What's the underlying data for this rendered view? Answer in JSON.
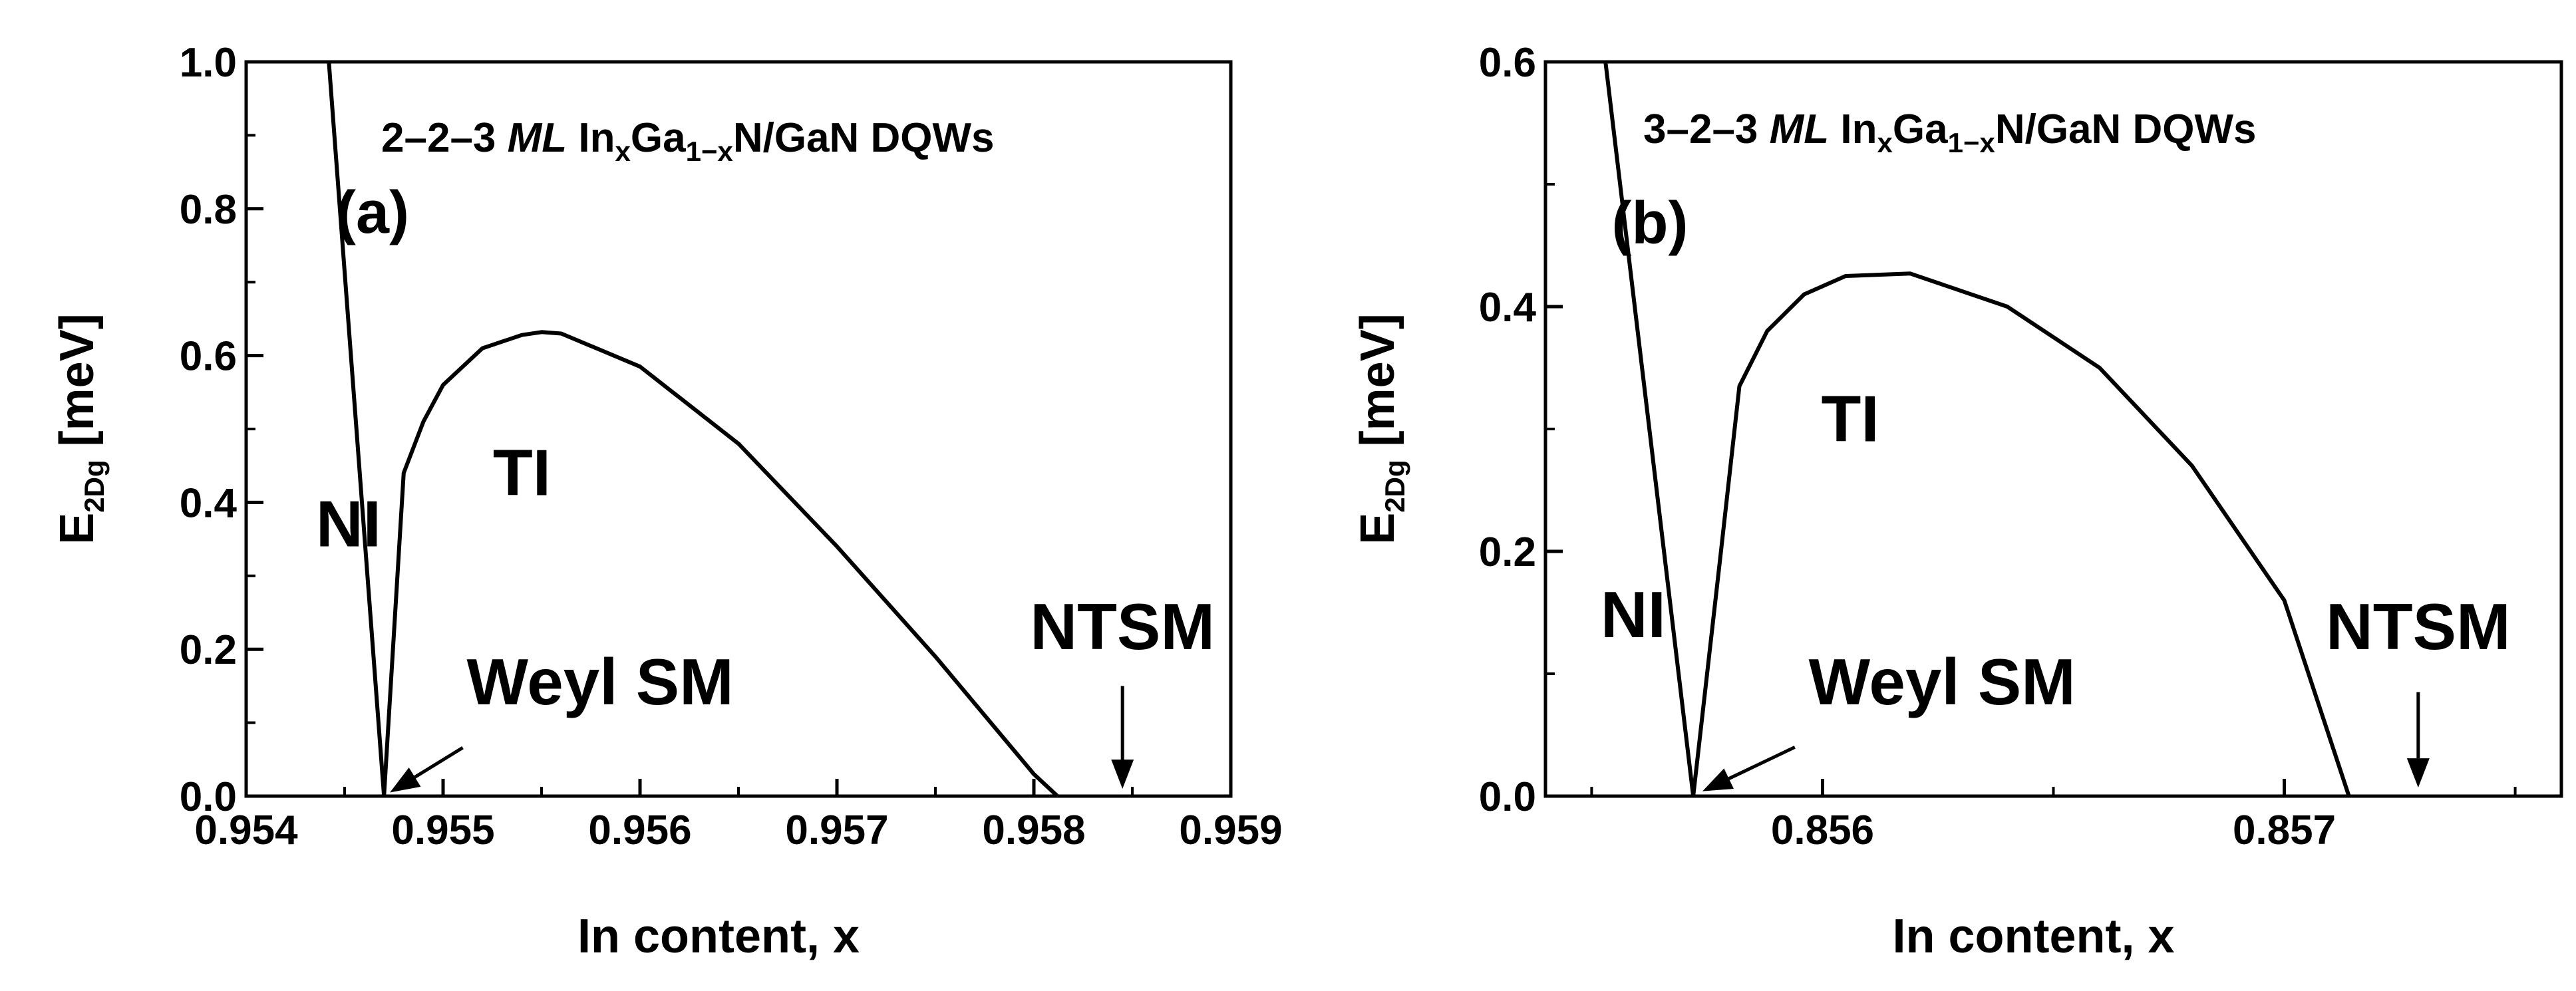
{
  "colors": {
    "background": "#ffffff",
    "ink": "#000000"
  },
  "chart_data": [
    {
      "type": "line",
      "panel_label": "(a)",
      "title": {
        "pre": "2–2–3 ",
        "ml": "ML",
        "mid1": " In",
        "sub1": "x",
        "mid2": "Ga",
        "sub2": "1−x",
        "post": "N/GaN DQWs"
      },
      "xlabel": "In content, x",
      "ylabel": {
        "main": "E",
        "sub": "2Dg",
        "unit": " [meV]"
      },
      "xlim": [
        0.954,
        0.959
      ],
      "ylim": [
        0.0,
        1.0
      ],
      "xticks": [
        0.954,
        0.955,
        0.956,
        0.957,
        0.958,
        0.959
      ],
      "xtick_labels": [
        "0.954",
        "0.955",
        "0.956",
        "0.957",
        "0.958",
        "0.959"
      ],
      "yticks": [
        0.0,
        0.2,
        0.4,
        0.6,
        0.8,
        1.0
      ],
      "ytick_labels": [
        "0.0",
        "0.2",
        "0.4",
        "0.6",
        "0.8",
        "1.0"
      ],
      "series": [
        {
          "name": "NI boundary",
          "x": [
            0.95442,
            0.9547
          ],
          "y": [
            1.0,
            0.0
          ]
        },
        {
          "name": "TI gap",
          "x": [
            0.9547,
            0.95475,
            0.9548,
            0.9549,
            0.955,
            0.9552,
            0.9554,
            0.9555,
            0.9556,
            0.956,
            0.9565,
            0.957,
            0.9575,
            0.958,
            0.95812
          ],
          "y": [
            0.0,
            0.22,
            0.44,
            0.51,
            0.56,
            0.61,
            0.628,
            0.632,
            0.63,
            0.585,
            0.48,
            0.34,
            0.19,
            0.03,
            0.0
          ]
        }
      ],
      "regions": [
        {
          "label": "NI",
          "x": 0.95452,
          "y": 0.34
        },
        {
          "label": "TI",
          "x": 0.9554,
          "y": 0.41
        }
      ],
      "annotations": [
        {
          "label": "Weyl SM",
          "text_x": 0.95512,
          "text_y": 0.125,
          "arrow_from": [
            0.9551,
            0.066
          ],
          "arrow_to": [
            0.95473,
            0.005
          ]
        },
        {
          "label": "NTSM",
          "text_x": 0.95845,
          "text_y": 0.2,
          "arrow_from": [
            0.95845,
            0.15
          ],
          "arrow_to": [
            0.95845,
            0.01
          ]
        }
      ]
    },
    {
      "type": "line",
      "panel_label": "(b)",
      "title": {
        "pre": "3–2–3 ",
        "ml": "ML",
        "mid1": " In",
        "sub1": "x",
        "mid2": "Ga",
        "sub2": "1−x",
        "post": "N/GaN DQWs"
      },
      "xlabel": "In content, x",
      "ylabel": {
        "main": "E",
        "sub": "2Dg",
        "unit": " [meV]"
      },
      "xlim": [
        0.8554,
        0.8576
      ],
      "ylim": [
        0.0,
        0.6
      ],
      "xticks": [
        0.856,
        0.857
      ],
      "xtick_labels": [
        "0.856",
        "0.857"
      ],
      "minor_xticks": [
        0.8555,
        0.8565,
        0.8575
      ],
      "yticks": [
        0.0,
        0.2,
        0.4,
        0.6
      ],
      "ytick_labels": [
        "0.0",
        "0.2",
        "0.4",
        "0.6"
      ],
      "minor_yticks": [
        0.1,
        0.3,
        0.5
      ],
      "series": [
        {
          "name": "NI boundary",
          "x": [
            0.85553,
            0.85572
          ],
          "y": [
            0.6,
            0.0
          ]
        },
        {
          "name": "TI gap",
          "x": [
            0.85572,
            0.85578,
            0.85582,
            0.85588,
            0.85596,
            0.85605,
            0.85619,
            0.8564,
            0.8566,
            0.8568,
            0.857,
            0.85714
          ],
          "y": [
            0.0,
            0.2,
            0.335,
            0.38,
            0.41,
            0.425,
            0.427,
            0.4,
            0.35,
            0.27,
            0.16,
            0.0
          ]
        }
      ],
      "regions": [
        {
          "label": "NI",
          "x": 0.85559,
          "y": 0.13
        },
        {
          "label": "TI",
          "x": 0.85606,
          "y": 0.29
        }
      ],
      "annotations": [
        {
          "label": "Weyl SM",
          "text_x": 0.85597,
          "text_y": 0.075,
          "arrow_from": [
            0.85594,
            0.04
          ],
          "arrow_to": [
            0.85574,
            0.004
          ]
        },
        {
          "label": "NTSM",
          "text_x": 0.85729,
          "text_y": 0.12,
          "arrow_from": [
            0.85729,
            0.085
          ],
          "arrow_to": [
            0.85729,
            0.007
          ]
        }
      ]
    }
  ]
}
